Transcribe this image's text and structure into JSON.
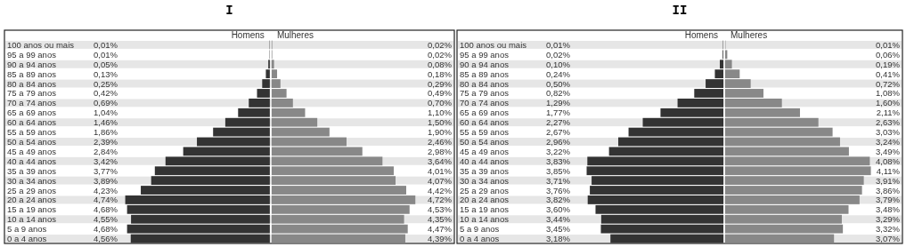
{
  "chart_data": [
    {
      "type": "bar",
      "orientation": "horizontal",
      "title": "I",
      "xlim": [
        8.7,
        0
      ],
      "categories": [
        "100 anos ou mais",
        "95 a 99 anos",
        "90 a 94 anos",
        "85 a 89 anos",
        "80 a 84 anos",
        "75 a 79 anos",
        "70 a 74 anos",
        "65 a 69 anos",
        "60 a 64 anos",
        "55 a 59 anos",
        "50 a 54 anos",
        "45 a 49 anos",
        "40 a 44 anos",
        "35 a 39 anos",
        "30 a 34 anos",
        "25 a 29 anos",
        "20 a 24 anos",
        "15 a 19 anos",
        "10 a 14 anos",
        "5 a 9 anos",
        "0 a 4 anos"
      ],
      "series": [
        {
          "name": "Homens",
          "color": "#333333",
          "values": [
            0.01,
            0.01,
            0.05,
            0.13,
            0.25,
            0.42,
            0.69,
            1.04,
            1.46,
            1.86,
            2.39,
            2.84,
            3.42,
            3.77,
            3.89,
            4.23,
            4.74,
            4.68,
            4.55,
            4.68,
            4.56
          ],
          "value_labels": [
            "0,01%",
            "0,01%",
            "0,05%",
            "0,13%",
            "0,25%",
            "0,42%",
            "0,69%",
            "1,04%",
            "1,46%",
            "1,86%",
            "2,39%",
            "2,84%",
            "3,42%",
            "3,77%",
            "3,89%",
            "4,23%",
            "4,74%",
            "4,68%",
            "4,55%",
            "4,68%",
            "4,56%"
          ]
        }
      ]
    },
    {
      "type": "bar",
      "orientation": "horizontal",
      "xlim": [
        0,
        6.0
      ],
      "tick_labels": false,
      "categories": [
        "100 anos ou mais",
        "95 a 99 anos",
        "90 a 94 anos",
        "85 a 89 anos",
        "80 a 84 anos",
        "75 a 79 anos",
        "70 a 74 anos",
        "65 a 69 anos",
        "60 a 64 anos",
        "55 a 59 anos",
        "50 a 54 anos",
        "45 a 49 anos",
        "40 a 44 anos",
        "35 a 39 anos",
        "30 a 34 anos",
        "25 a 29 anos",
        "20 a 24 anos",
        "15 a 19 anos",
        "10 a 14 anos",
        "5 a 9 anos",
        "0 a 4 anos"
      ],
      "series": [
        {
          "name": "Mulheres",
          "color": "#888888",
          "values": [
            0.02,
            0.02,
            0.08,
            0.18,
            0.29,
            0.49,
            0.7,
            1.1,
            1.5,
            1.9,
            2.46,
            2.98,
            3.64,
            4.01,
            4.07,
            4.42,
            4.72,
            4.53,
            4.35,
            4.47,
            4.39
          ],
          "value_labels": [
            "0,02%",
            "0,02%",
            "0,08%",
            "0,18%",
            "0,29%",
            "0,49%",
            "0,70%",
            "1,10%",
            "1,50%",
            "1,90%",
            "2,46%",
            "2,98%",
            "3,64%",
            "4,01%",
            "4,07%",
            "4,42%",
            "4,72%",
            "4,53%",
            "4,35%",
            "4,47%",
            "4,39%"
          ]
        }
      ]
    },
    {
      "type": "bar",
      "orientation": "horizontal",
      "title": "II",
      "xlim": [
        7.5,
        0
      ],
      "categories": [
        "100 anos ou mais",
        "95 a 99 anos",
        "90 a 94 anos",
        "85 a 89 anos",
        "80 a 84 anos",
        "75 a 79 anos",
        "70 a 74 anos",
        "65 a 69 anos",
        "60 a 64 anos",
        "55 a 59 anos",
        "50 a 54 anos",
        "45 a 49 anos",
        "40 a 44 anos",
        "35 a 39 anos",
        "30 a 34 anos",
        "25 a 29 anos",
        "20 a 24 anos",
        "15 a 19 anos",
        "10 a 14 anos",
        "5 a 9 anos",
        "0 a 4 anos"
      ],
      "series": [
        {
          "name": "Homens",
          "color": "#333333",
          "values": [
            0.01,
            0.02,
            0.1,
            0.24,
            0.5,
            0.82,
            1.29,
            1.77,
            2.27,
            2.67,
            2.96,
            3.22,
            3.83,
            3.85,
            3.71,
            3.76,
            3.82,
            3.6,
            3.44,
            3.45,
            3.18
          ],
          "value_labels": [
            "0,01%",
            "0,02%",
            "0,10%",
            "0,24%",
            "0,50%",
            "0,82%",
            "1,29%",
            "1,77%",
            "2,27%",
            "2,67%",
            "2,96%",
            "3,22%",
            "3,83%",
            "3,85%",
            "3,71%",
            "3,76%",
            "3,82%",
            "3,60%",
            "3,44%",
            "3,45%",
            "3,18%"
          ]
        }
      ]
    },
    {
      "type": "bar",
      "orientation": "horizontal",
      "xlim": [
        0,
        5.0
      ],
      "tick_labels": false,
      "categories": [
        "100 anos ou mais",
        "95 a 99 anos",
        "90 a 94 anos",
        "85 a 89 anos",
        "80 a 84 anos",
        "75 a 79 anos",
        "70 a 74 anos",
        "65 a 69 anos",
        "60 a 64 anos",
        "55 a 59 anos",
        "50 a 54 anos",
        "45 a 49 anos",
        "40 a 44 anos",
        "35 a 39 anos",
        "30 a 34 anos",
        "25 a 29 anos",
        "20 a 24 anos",
        "15 a 19 anos",
        "10 a 14 anos",
        "5 a 9 anos",
        "0 a 4 anos"
      ],
      "series": [
        {
          "name": "Mulheres",
          "color": "#888888",
          "values": [
            0.01,
            0.06,
            0.19,
            0.41,
            0.72,
            1.08,
            1.6,
            2.11,
            2.63,
            3.03,
            3.24,
            3.49,
            4.08,
            4.11,
            3.91,
            3.86,
            3.79,
            3.48,
            3.29,
            3.32,
            3.07
          ],
          "value_labels": [
            "0,01%",
            "0,06%",
            "0,19%",
            "0,41%",
            "0,72%",
            "1,08%",
            "1,60%",
            "2,11%",
            "2,63%",
            "3,03%",
            "3,24%",
            "3,49%",
            "4,08%",
            "4,11%",
            "3,91%",
            "3,86%",
            "3,79%",
            "3,48%",
            "3,29%",
            "3,32%",
            "3,07%"
          ]
        }
      ]
    }
  ]
}
